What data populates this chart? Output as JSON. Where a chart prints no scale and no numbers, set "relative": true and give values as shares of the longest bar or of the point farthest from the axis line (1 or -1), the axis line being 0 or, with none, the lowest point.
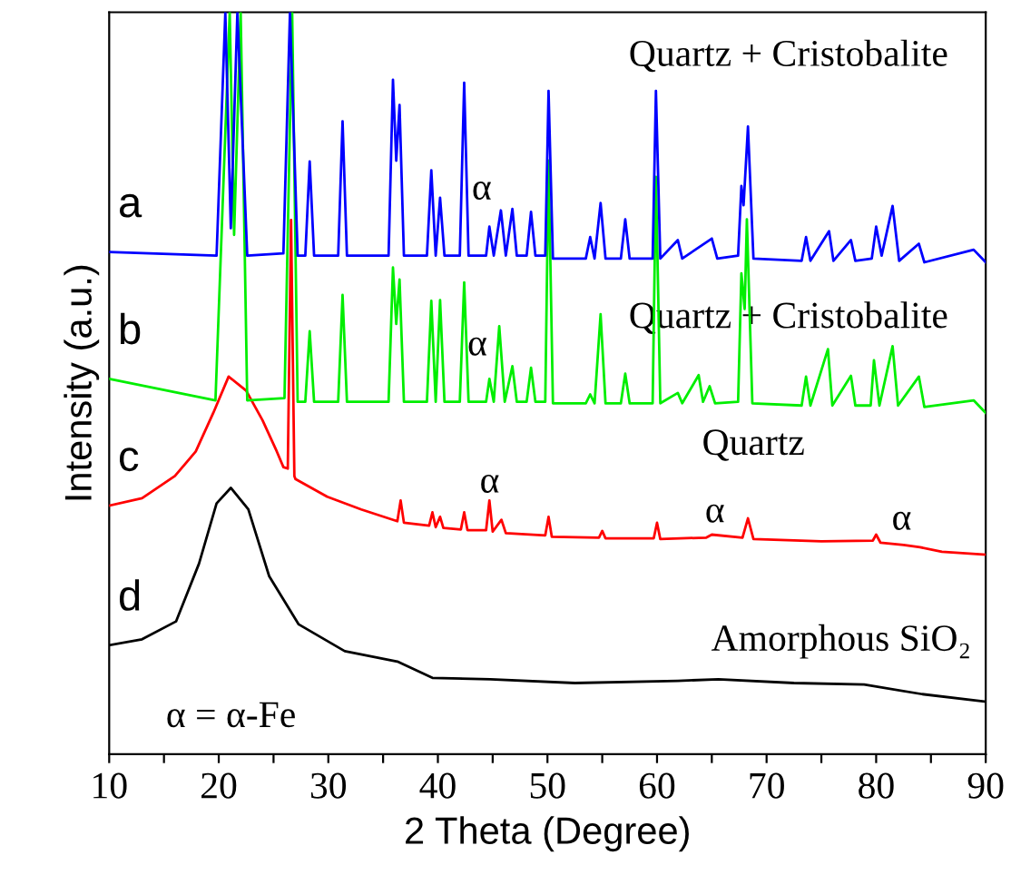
{
  "chart_data": {
    "type": "line",
    "relative": true,
    "xlabel": "2 Theta (Degree)",
    "ylabel": "Intensity (a.u.)",
    "xlim": [
      10,
      90
    ],
    "xticks": [
      10,
      {
        "value": 15,
        "label": null
      },
      20,
      {
        "value": 25,
        "label": null
      },
      30,
      {
        "value": 35,
        "label": null
      },
      40,
      {
        "value": 45,
        "label": null
      },
      50,
      {
        "value": 55,
        "label": null
      },
      60,
      {
        "value": 65,
        "label": null
      },
      70,
      {
        "value": 75,
        "label": null
      },
      80,
      {
        "value": 85,
        "label": null
      },
      90
    ],
    "grid": false,
    "legend": false,
    "marker": "none",
    "line_style": "solid",
    "series": [
      {
        "name": "a",
        "color": "#0000ff",
        "x": [
          10,
          19.8,
          20.6,
          21.1,
          21.7,
          22.6,
          25.9,
          26.5,
          27.2,
          27.9,
          28.3,
          28.7,
          30.9,
          31.3,
          31.7,
          35.5,
          35.9,
          36.2,
          36.5,
          36.9,
          39.0,
          39.4,
          39.8,
          40.2,
          40.6,
          42.0,
          42.4,
          42.8,
          44.4,
          44.7,
          45.1,
          45.75,
          46.2,
          46.8,
          47.2,
          48.1,
          48.5,
          48.9,
          49.8,
          50.1,
          50.5,
          53.5,
          53.9,
          54.3,
          54.85,
          55.3,
          56.7,
          57.1,
          57.5,
          59.6,
          59.9,
          60.3,
          61.9,
          62.3,
          65.0,
          65.5,
          67.4,
          67.7,
          67.9,
          68.3,
          68.8,
          73.2,
          73.6,
          74,
          75.7,
          76.1,
          77.7,
          78.1,
          79.6,
          80.0,
          80.5,
          81.5,
          82.1,
          83.9,
          84.4,
          88.9,
          90
        ],
        "values": [
          0.677,
          0.672,
          1,
          0.709,
          1,
          0.672,
          0.675,
          1,
          0.672,
          0.672,
          0.799,
          0.672,
          0.672,
          0.853,
          0.672,
          0.672,
          0.909,
          0.8,
          0.875,
          0.672,
          0.672,
          0.787,
          0.672,
          0.75,
          0.672,
          0.672,
          0.905,
          0.672,
          0.672,
          0.711,
          0.672,
          0.733,
          0.672,
          0.735,
          0.672,
          0.672,
          0.731,
          0.672,
          0.672,
          0.894,
          0.668,
          0.668,
          0.697,
          0.668,
          0.743,
          0.668,
          0.668,
          0.721,
          0.668,
          0.668,
          0.894,
          0.668,
          0.693,
          0.668,
          0.695,
          0.668,
          0.672,
          0.766,
          0.74,
          0.846,
          0.668,
          0.665,
          0.697,
          0.665,
          0.705,
          0.665,
          0.693,
          0.665,
          0.668,
          0.711,
          0.672,
          0.739,
          0.665,
          0.688,
          0.663,
          0.68,
          0.663
        ]
      },
      {
        "name": "b",
        "color": "#00ee00",
        "x": [
          10,
          19.7,
          21.0,
          21.4,
          22.0,
          22.6,
          26.0,
          26.7,
          27.2,
          27.9,
          28.3,
          28.7,
          30.9,
          31.3,
          31.7,
          35.5,
          35.9,
          36.2,
          36.5,
          36.9,
          39.0,
          39.4,
          39.8,
          40.2,
          40.6,
          42.0,
          42.4,
          42.8,
          44.4,
          44.7,
          45.1,
          45.6,
          46.1,
          46.8,
          47.2,
          48.1,
          48.5,
          48.9,
          49.8,
          50.1,
          50.5,
          53.5,
          53.9,
          54.3,
          54.85,
          55.3,
          56.7,
          57.1,
          57.5,
          59.6,
          59.9,
          60.3,
          61.9,
          62.3,
          63.8,
          64.2,
          64.8,
          65.3,
          67.4,
          67.7,
          68.0,
          68.2,
          68.7,
          73.2,
          73.6,
          74,
          75.6,
          76,
          77.7,
          78.1,
          79.5,
          79.8,
          80.3,
          81.5,
          82,
          83.9,
          84.4,
          88.9,
          90
        ],
        "values": [
          0.506,
          0.477,
          1,
          0.7,
          1,
          0.477,
          0.48,
          1,
          0.475,
          0.475,
          0.57,
          0.475,
          0.475,
          0.619,
          0.475,
          0.475,
          0.656,
          0.58,
          0.64,
          0.475,
          0.475,
          0.611,
          0.475,
          0.612,
          0.475,
          0.475,
          0.636,
          0.475,
          0.475,
          0.506,
          0.475,
          0.577,
          0.475,
          0.523,
          0.475,
          0.475,
          0.521,
          0.475,
          0.475,
          0.8,
          0.473,
          0.473,
          0.485,
          0.473,
          0.593,
          0.473,
          0.473,
          0.513,
          0.473,
          0.473,
          0.778,
          0.473,
          0.487,
          0.473,
          0.511,
          0.475,
          0.496,
          0.473,
          0.475,
          0.648,
          0.6,
          0.721,
          0.473,
          0.47,
          0.509,
          0.47,
          0.546,
          0.47,
          0.51,
          0.47,
          0.47,
          0.531,
          0.47,
          0.55,
          0.47,
          0.509,
          0.468,
          0.477,
          0.46
        ]
      },
      {
        "name": "c",
        "color": "#ff0000",
        "x": [
          10,
          13,
          16,
          17.9,
          19.5,
          20.9,
          22.5,
          24,
          25.3,
          25.9,
          26.3,
          26.6,
          26.9,
          27.0,
          29.9,
          33,
          36.3,
          36.6,
          36.9,
          39.2,
          39.5,
          39.8,
          40.2,
          40.5,
          42.1,
          42.4,
          42.7,
          44.4,
          44.7,
          45.0,
          45.8,
          46.2,
          49.8,
          50.1,
          50.4,
          54.7,
          55,
          55.3,
          59.7,
          60,
          60.3,
          64.5,
          65,
          67.8,
          68.3,
          68.8,
          75,
          79.7,
          80,
          80.4,
          82.5,
          84,
          86,
          90
        ],
        "values": [
          0.335,
          0.345,
          0.375,
          0.408,
          0.46,
          0.509,
          0.49,
          0.45,
          0.408,
          0.387,
          0.385,
          0.72,
          0.375,
          0.371,
          0.347,
          0.33,
          0.314,
          0.342,
          0.312,
          0.308,
          0.326,
          0.306,
          0.32,
          0.305,
          0.303,
          0.326,
          0.302,
          0.302,
          0.342,
          0.3,
          0.316,
          0.298,
          0.295,
          0.32,
          0.293,
          0.292,
          0.301,
          0.291,
          0.291,
          0.312,
          0.29,
          0.292,
          0.296,
          0.292,
          0.318,
          0.29,
          0.287,
          0.288,
          0.296,
          0.285,
          0.282,
          0.279,
          0.273,
          0.269
        ]
      },
      {
        "name": "d",
        "color": "#000000",
        "x": [
          10,
          13,
          16.1,
          18.2,
          19.8,
          21.1,
          22.7,
          24.6,
          27.3,
          31.5,
          36.3,
          39.5,
          44.8,
          52.5,
          61.9,
          65.6,
          72.5,
          78.9,
          84.2,
          90
        ],
        "values": [
          0.147,
          0.155,
          0.179,
          0.257,
          0.338,
          0.359,
          0.33,
          0.24,
          0.175,
          0.139,
          0.125,
          0.103,
          0.101,
          0.096,
          0.099,
          0.101,
          0.096,
          0.094,
          0.081,
          0.071
        ]
      }
    ],
    "annotations": [
      "Quartz + Cristobalite",
      "Quartz + Cristobalite",
      "Quartz",
      "Amorphous SiO₂",
      "α",
      "α",
      "α",
      "α",
      "α",
      "α = α-Fe"
    ]
  }
}
